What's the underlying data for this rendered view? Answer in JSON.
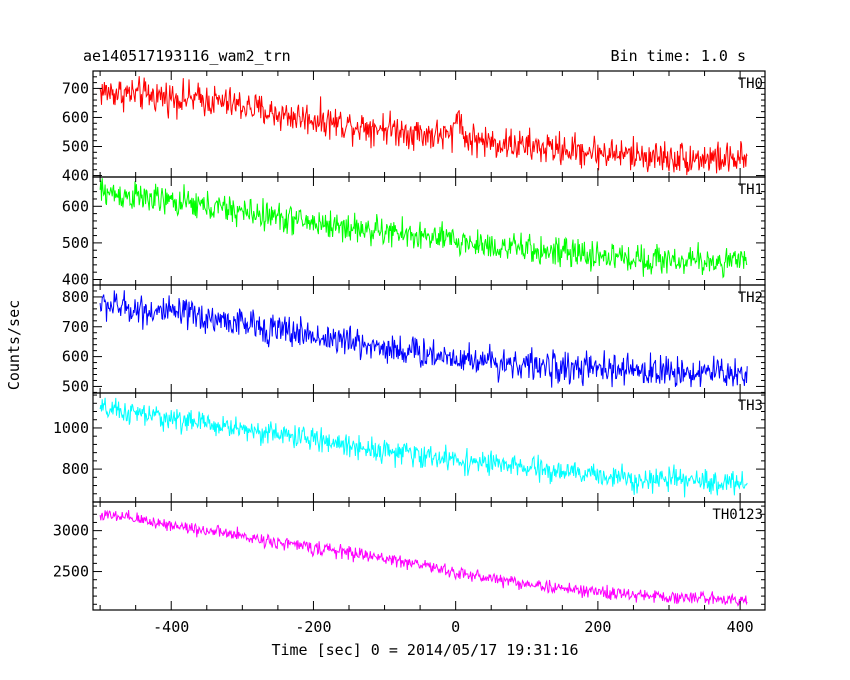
{
  "header": {
    "title": "ae140517193116_wam2_trn",
    "bin_time": "Bin time: 1.0 s"
  },
  "axes": {
    "xlabel": "Time [sec] 0 = 2014/05/17 19:31:16",
    "ylabel": "Counts/sec"
  },
  "chart_data": {
    "type": "line",
    "title": "ae140517193116_wam2_trn",
    "xlabel": "Time [sec] 0 = 2014/05/17 19:31:16",
    "ylabel": "Counts/sec",
    "xlim": [
      -510,
      435
    ],
    "x_ticks": [
      -400,
      -200,
      0,
      200,
      400
    ],
    "grid": false,
    "legend": "none",
    "panels": [
      {
        "label": "TH0",
        "color": "#ff0000",
        "ylim": [
          395,
          760
        ],
        "y_ticks": [
          400,
          500,
          600,
          700
        ],
        "x": [
          -500,
          -450,
          -400,
          -350,
          -300,
          -250,
          -200,
          -150,
          -100,
          -50,
          -5,
          5,
          10,
          50,
          100,
          150,
          200,
          250,
          300,
          350,
          410
        ],
        "mean": [
          690,
          680,
          670,
          660,
          640,
          610,
          595,
          575,
          565,
          545,
          535,
          640,
          530,
          515,
          500,
          490,
          480,
          470,
          462,
          460,
          452
        ],
        "noise": 28
      },
      {
        "label": "TH1",
        "color": "#00ff00",
        "ylim": [
          385,
          680
        ],
        "y_ticks": [
          400,
          500,
          600
        ],
        "x": [
          -500,
          -450,
          -400,
          -350,
          -300,
          -250,
          -200,
          -150,
          -100,
          -50,
          0,
          50,
          100,
          150,
          200,
          250,
          300,
          350,
          410
        ],
        "mean": [
          640,
          625,
          612,
          600,
          585,
          570,
          555,
          542,
          530,
          518,
          505,
          492,
          482,
          472,
          465,
          458,
          453,
          450,
          447
        ],
        "noise": 20
      },
      {
        "label": "TH2",
        "color": "#0000ff",
        "ylim": [
          478,
          840
        ],
        "y_ticks": [
          500,
          600,
          700,
          800
        ],
        "x": [
          -500,
          -450,
          -400,
          -350,
          -300,
          -250,
          -200,
          -150,
          -100,
          -50,
          0,
          50,
          100,
          150,
          200,
          250,
          300,
          350,
          410
        ],
        "mean": [
          775,
          760,
          745,
          730,
          710,
          690,
          670,
          650,
          630,
          612,
          598,
          585,
          572,
          562,
          557,
          553,
          550,
          548,
          545
        ],
        "noise": 26
      },
      {
        "label": "TH3",
        "color": "#00ffff",
        "ylim": [
          640,
          1170
        ],
        "y_ticks": [
          800,
          1000
        ],
        "x": [
          -500,
          -450,
          -400,
          -350,
          -300,
          -250,
          -200,
          -150,
          -100,
          -50,
          0,
          50,
          100,
          150,
          200,
          250,
          300,
          350,
          410
        ],
        "mean": [
          1090,
          1070,
          1045,
          1020,
          995,
          970,
          945,
          915,
          890,
          865,
          845,
          825,
          805,
          785,
          770,
          755,
          745,
          738,
          732
        ],
        "noise": 28
      },
      {
        "label": "TH0123",
        "color": "#ff00ff",
        "ylim": [
          2030,
          3350
        ],
        "y_ticks": [
          2500,
          3000
        ],
        "x": [
          -500,
          -450,
          -400,
          -350,
          -300,
          -250,
          -200,
          -150,
          -100,
          -50,
          0,
          50,
          100,
          150,
          200,
          250,
          300,
          350,
          410
        ],
        "mean": [
          3190,
          3140,
          3070,
          3000,
          2930,
          2860,
          2790,
          2730,
          2660,
          2590,
          2480,
          2420,
          2350,
          2290,
          2250,
          2210,
          2190,
          2175,
          2160
        ],
        "noise": 40
      }
    ]
  }
}
